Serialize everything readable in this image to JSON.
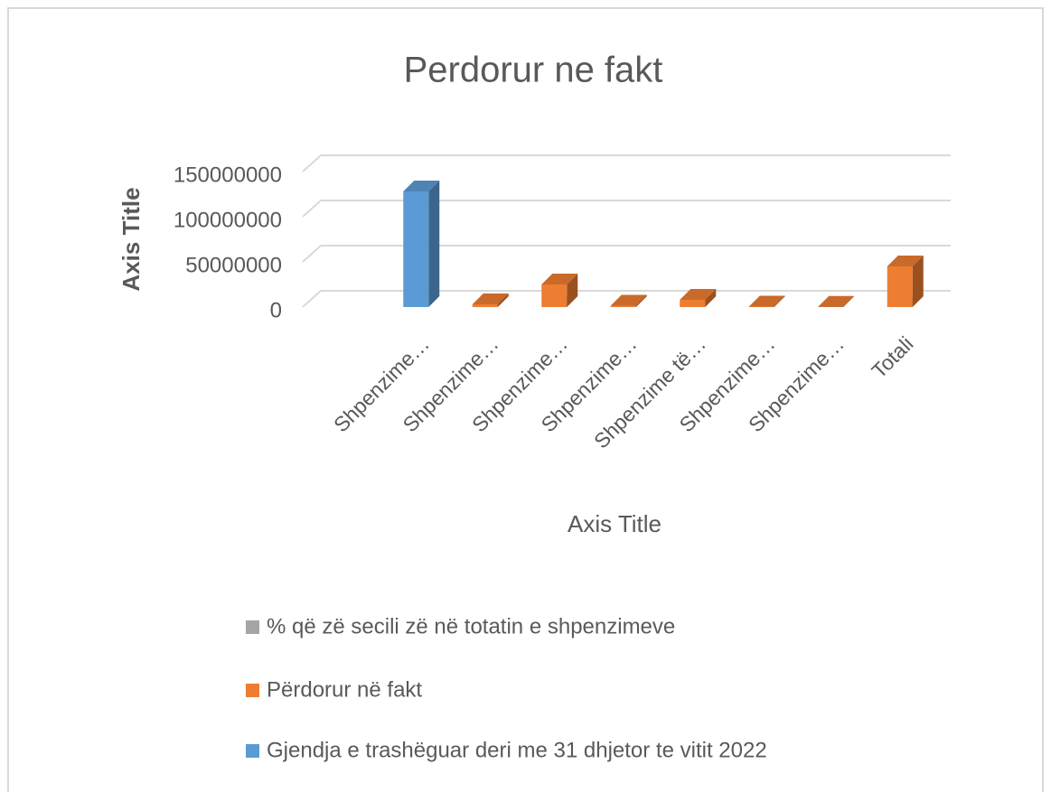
{
  "chart_data": {
    "type": "bar3d",
    "title": "Perdorur ne fakt",
    "x_axis_title": "Axis Title",
    "y_axis_title": "Axis Title",
    "categories": [
      "Shpenzime…",
      "Shpenzime…",
      "Shpenzime…",
      "Shpenzime…",
      "Shpenzime të…",
      "Shpenzime…",
      "Shpenzime…",
      "Totali"
    ],
    "series": [
      {
        "name": "% që zë secili zë në totatin e shpenzimeve",
        "color": "#a5a5a5",
        "values": [
          null,
          7,
          57,
          3,
          18,
          1,
          1,
          100
        ]
      },
      {
        "name": "Përdorur në fakt",
        "color": "#ed7d31",
        "values": [
          null,
          3000000,
          25000000,
          1500000,
          8000000,
          500000,
          300000,
          45000000
        ]
      },
      {
        "name": "Gjendja e trashëguar deri me 31 dhjetor te vitit 2022",
        "color": "#5b9bd5",
        "values": [
          128000000,
          null,
          null,
          null,
          null,
          null,
          null,
          null
        ]
      }
    ],
    "ylim": [
      0,
      150000000
    ],
    "yticks": [
      0,
      50000000,
      100000000,
      150000000
    ],
    "grid": true
  }
}
